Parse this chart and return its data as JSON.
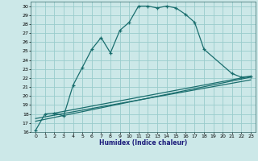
{
  "title": "",
  "xlabel": "Humidex (Indice chaleur)",
  "bg_color": "#cce8e8",
  "grid_color": "#99cccc",
  "line_color": "#1a6e6e",
  "xlim": [
    -0.5,
    23.5
  ],
  "ylim": [
    16,
    30.5
  ],
  "xticks": [
    0,
    1,
    2,
    3,
    4,
    5,
    6,
    7,
    8,
    9,
    10,
    11,
    12,
    13,
    14,
    15,
    16,
    17,
    18,
    19,
    20,
    21,
    22,
    23
  ],
  "yticks": [
    16,
    17,
    18,
    19,
    20,
    21,
    22,
    23,
    24,
    25,
    26,
    27,
    28,
    29,
    30
  ],
  "line1_x": [
    0,
    1,
    2,
    3,
    4,
    5,
    6,
    7,
    8,
    9,
    10,
    11,
    12,
    13,
    14,
    15,
    16,
    17,
    18,
    21,
    22,
    23
  ],
  "line1_y": [
    16.2,
    18.0,
    18.1,
    17.8,
    21.2,
    23.2,
    25.2,
    26.5,
    24.8,
    27.3,
    28.2,
    30.0,
    30.0,
    29.8,
    30.0,
    29.8,
    29.1,
    28.2,
    25.2,
    22.5,
    22.1,
    22.2
  ],
  "line2_x": [
    0,
    23
  ],
  "line2_y": [
    17.2,
    22.1
  ],
  "line3_x": [
    0,
    23
  ],
  "line3_y": [
    17.5,
    21.8
  ],
  "line4_x": [
    2,
    23
  ],
  "line4_y": [
    18.1,
    22.2
  ]
}
